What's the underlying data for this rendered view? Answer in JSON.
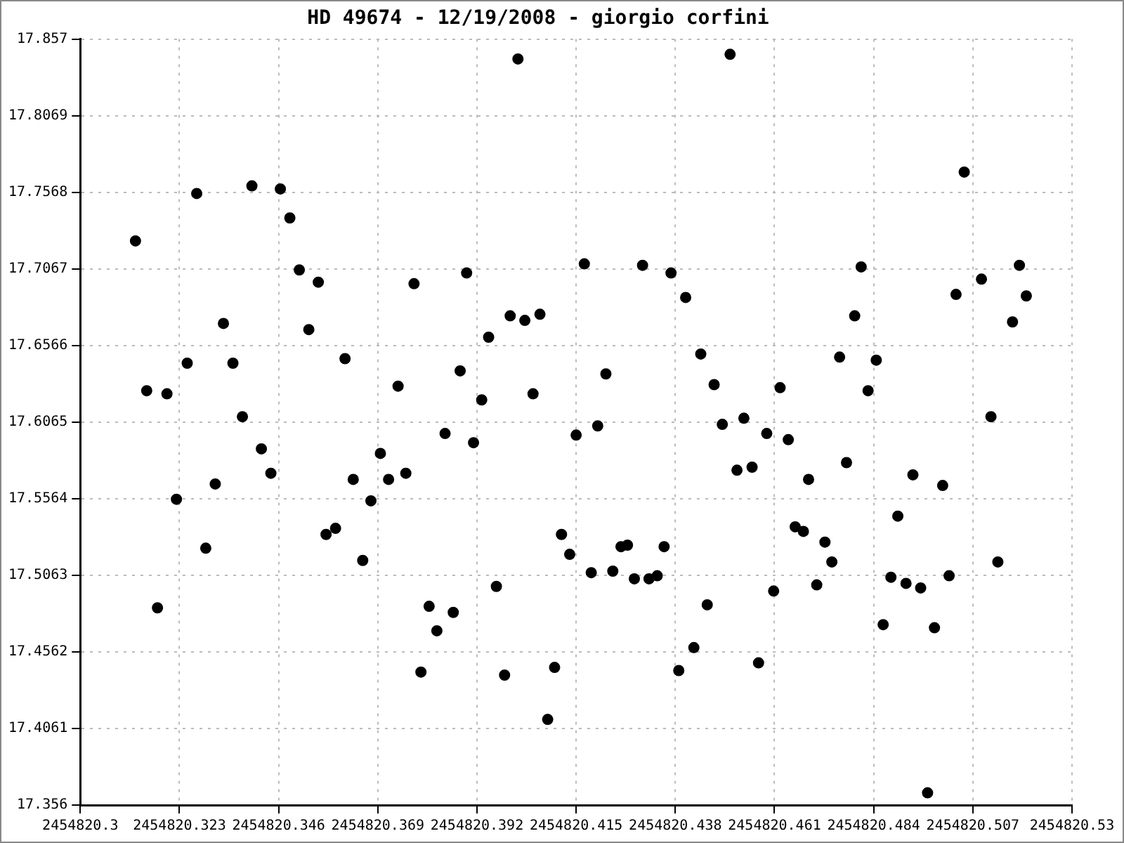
{
  "chart_data": {
    "type": "scatter",
    "title": "HD 49674 - 12/19/2008 - giorgio corfini",
    "color": "#000000",
    "marker": "circle",
    "grid": true,
    "legend": false,
    "xlim": [
      2454820.3,
      2454820.53
    ],
    "xticks": [
      2454820.3,
      2454820.323,
      2454820.346,
      2454820.369,
      2454820.392,
      2454820.415,
      2454820.438,
      2454820.461,
      2454820.484,
      2454820.507,
      2454820.53
    ],
    "ylim": [
      17.356,
      17.857
    ],
    "yticks": [
      17.356,
      17.4061,
      17.4562,
      17.5063,
      17.5564,
      17.6065,
      17.6566,
      17.7067,
      17.7568,
      17.8069,
      17.857
    ],
    "x": [
      2454820.3128,
      2454820.3154,
      2454820.3179,
      2454820.3201,
      2454820.3223,
      2454820.3248,
      2454820.327,
      2454820.3291,
      2454820.3313,
      2454820.3332,
      2454820.3354,
      2454820.3376,
      2454820.3398,
      2454820.342,
      2454820.3442,
      2454820.3464,
      2454820.3486,
      2454820.3508,
      2454820.353,
      2454820.3552,
      2454820.357,
      2454820.3592,
      2454820.3614,
      2454820.3633,
      2454820.3655,
      2454820.3674,
      2454820.3696,
      2454820.3715,
      2454820.3737,
      2454820.3755,
      2454820.3774,
      2454820.379,
      2454820.3809,
      2454820.3827,
      2454820.3846,
      2454820.3865,
      2454820.3881,
      2454820.3896,
      2454820.3912,
      2454820.3931,
      2454820.3947,
      2454820.3965,
      2454820.3984,
      2454820.3997,
      2454820.4015,
      2454820.4031,
      2454820.405,
      2454820.4066,
      2454820.4084,
      2454820.41,
      2454820.4116,
      2454820.4135,
      2454820.415,
      2454820.4169,
      2454820.4185,
      2454820.42,
      2454820.4219,
      2454820.4235,
      2454820.4254,
      2454820.4269,
      2454820.4285,
      2454820.4304,
      2454820.4319,
      2454820.4338,
      2454820.4354,
      2454820.437,
      2454820.4388,
      2454820.4404,
      2454820.4423,
      2454820.4439,
      2454820.4454,
      2454820.447,
      2454820.4489,
      2454820.4507,
      2454820.4523,
      2454820.4539,
      2454820.4558,
      2454820.4573,
      2454820.4592,
      2454820.4608,
      2454820.4623,
      2454820.4642,
      2454820.4658,
      2454820.4677,
      2454820.4689,
      2454820.4708,
      2454820.4727,
      2454820.4743,
      2454820.4761,
      2454820.4777,
      2454820.4796,
      2454820.4811,
      2454820.4827,
      2454820.4846,
      2454820.4862,
      2454820.488,
      2454820.4896,
      2454820.4915,
      2454820.4931,
      2454820.4949,
      2454820.4965,
      2454820.4981,
      2454820.5,
      2454820.5015,
      2454820.5031,
      2454820.505,
      2454820.509,
      2454820.5112,
      2454820.5128,
      2454820.5162,
      2454820.5178,
      2454820.5194
    ],
    "values": [
      17.725,
      17.627,
      17.485,
      17.625,
      17.556,
      17.645,
      17.756,
      17.524,
      17.566,
      17.671,
      17.645,
      17.61,
      17.761,
      17.589,
      17.573,
      17.759,
      17.74,
      17.706,
      17.667,
      17.698,
      17.533,
      17.537,
      17.648,
      17.569,
      17.516,
      17.555,
      17.586,
      17.569,
      17.63,
      17.573,
      17.697,
      17.443,
      17.486,
      17.47,
      17.599,
      17.482,
      17.64,
      17.704,
      17.593,
      17.621,
      17.662,
      17.499,
      17.441,
      17.676,
      17.844,
      17.673,
      17.625,
      17.677,
      17.412,
      17.446,
      17.533,
      17.52,
      17.598,
      17.71,
      17.508,
      17.604,
      17.638,
      17.509,
      17.525,
      17.526,
      17.504,
      17.709,
      17.504,
      17.506,
      17.525,
      17.704,
      17.444,
      17.688,
      17.459,
      17.651,
      17.487,
      17.631,
      17.605,
      17.847,
      17.575,
      17.609,
      17.577,
      17.449,
      17.599,
      17.496,
      17.629,
      17.595,
      17.538,
      17.535,
      17.569,
      17.5,
      17.528,
      17.515,
      17.649,
      17.58,
      17.676,
      17.708,
      17.627,
      17.647,
      17.474,
      17.505,
      17.545,
      17.501,
      17.572,
      17.498,
      17.364,
      17.472,
      17.565,
      17.506,
      17.69,
      17.77,
      17.7,
      17.61,
      17.515,
      17.672,
      17.709,
      17.689
    ]
  }
}
